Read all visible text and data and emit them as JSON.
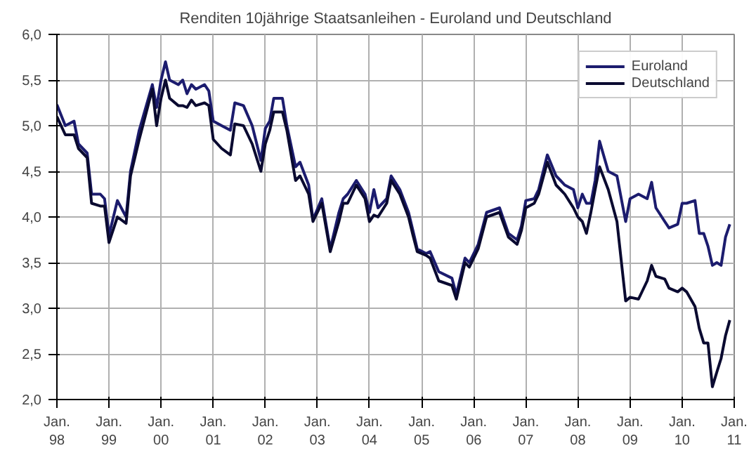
{
  "chart_data": {
    "type": "line",
    "title": "Renditen 10jährige Staatsanleihen - Euroland und Deutschland",
    "x": [
      "1998-01",
      "1998-03",
      "1998-05",
      "1998-06",
      "1998-08",
      "1998-09",
      "1998-11",
      "1998-12",
      "1999-01",
      "1999-03",
      "1999-05",
      "1999-06",
      "1999-08",
      "1999-11",
      "1999-12",
      "2000-01",
      "2000-02",
      "2000-03",
      "2000-05",
      "2000-06",
      "2000-07",
      "2000-08",
      "2000-09",
      "2000-11",
      "2000-12",
      "2001-01",
      "2001-03",
      "2001-05",
      "2001-06",
      "2001-08",
      "2001-10",
      "2001-12",
      "2002-01",
      "2002-02",
      "2002-03",
      "2002-05",
      "2002-06",
      "2002-08",
      "2002-09",
      "2002-11",
      "2002-12",
      "2003-02",
      "2003-04",
      "2003-06",
      "2003-07",
      "2003-08",
      "2003-10",
      "2003-12",
      "2004-01",
      "2004-02",
      "2004-03",
      "2004-05",
      "2004-06",
      "2004-08",
      "2004-10",
      "2004-11",
      "2004-12",
      "2005-02",
      "2005-03",
      "2005-05",
      "2005-08",
      "2005-09",
      "2005-11",
      "2005-12",
      "2006-02",
      "2006-04",
      "2006-07",
      "2006-09",
      "2006-11",
      "2006-12",
      "2007-01",
      "2007-03",
      "2007-04",
      "2007-06",
      "2007-08",
      "2007-09",
      "2007-10",
      "2007-12",
      "2008-01",
      "2008-02",
      "2008-03",
      "2008-04",
      "2008-05",
      "2008-06",
      "2008-08",
      "2008-10",
      "2008-12",
      "2009-01",
      "2009-03",
      "2009-05",
      "2009-06",
      "2009-07",
      "2009-09",
      "2009-10",
      "2009-12",
      "2010-01",
      "2010-02",
      "2010-04",
      "2010-05",
      "2010-06",
      "2010-07",
      "2010-08",
      "2010-09",
      "2010-10",
      "2010-11",
      "2010-12"
    ],
    "series": [
      {
        "name": "Euroland",
        "color": "#1c1c6e",
        "values": [
          5.23,
          5.0,
          5.05,
          4.8,
          4.7,
          4.25,
          4.25,
          4.2,
          3.8,
          4.18,
          4.0,
          4.5,
          4.95,
          5.45,
          5.2,
          5.5,
          5.7,
          5.5,
          5.45,
          5.5,
          5.35,
          5.45,
          5.4,
          5.45,
          5.38,
          5.05,
          5.0,
          4.95,
          5.25,
          5.22,
          5.0,
          4.62,
          4.97,
          5.05,
          5.3,
          5.3,
          5.0,
          4.55,
          4.6,
          4.35,
          3.97,
          4.2,
          3.65,
          4.05,
          4.2,
          4.25,
          4.4,
          4.25,
          4.05,
          4.3,
          4.1,
          4.2,
          4.45,
          4.3,
          4.05,
          3.85,
          3.65,
          3.6,
          3.62,
          3.4,
          3.33,
          3.15,
          3.55,
          3.5,
          3.7,
          4.05,
          4.1,
          3.82,
          3.75,
          3.9,
          4.18,
          4.2,
          4.3,
          4.68,
          4.45,
          4.4,
          4.35,
          4.3,
          4.1,
          4.25,
          4.15,
          4.15,
          4.4,
          4.83,
          4.5,
          4.45,
          3.95,
          4.2,
          4.25,
          4.2,
          4.38,
          4.1,
          3.95,
          3.88,
          3.92,
          4.15,
          4.15,
          4.18,
          3.82,
          3.82,
          3.68,
          3.47,
          3.5,
          3.47,
          3.78,
          3.92
        ]
      },
      {
        "name": "Deutschland",
        "color": "#0a0a30",
        "values": [
          5.1,
          4.9,
          4.9,
          4.75,
          4.65,
          4.15,
          4.12,
          4.12,
          3.72,
          4.0,
          3.93,
          4.45,
          4.85,
          5.4,
          5.0,
          5.3,
          5.5,
          5.3,
          5.22,
          5.22,
          5.2,
          5.28,
          5.22,
          5.25,
          5.22,
          4.85,
          4.75,
          4.68,
          5.02,
          5.0,
          4.8,
          4.5,
          4.8,
          4.95,
          5.15,
          5.15,
          4.95,
          4.4,
          4.45,
          4.25,
          3.95,
          4.15,
          3.62,
          3.95,
          4.15,
          4.15,
          4.35,
          4.2,
          3.95,
          4.02,
          4.0,
          4.15,
          4.4,
          4.25,
          4.0,
          3.8,
          3.62,
          3.58,
          3.55,
          3.3,
          3.25,
          3.1,
          3.5,
          3.45,
          3.65,
          4.0,
          4.05,
          3.78,
          3.7,
          3.85,
          4.1,
          4.15,
          4.25,
          4.6,
          4.35,
          4.3,
          4.25,
          4.1,
          4.0,
          3.95,
          3.82,
          4.05,
          4.3,
          4.55,
          4.3,
          3.95,
          3.08,
          3.12,
          3.1,
          3.3,
          3.47,
          3.35,
          3.32,
          3.22,
          3.18,
          3.22,
          3.18,
          3.02,
          2.78,
          2.62,
          2.62,
          2.14,
          2.3,
          2.45,
          2.7,
          2.87
        ]
      }
    ],
    "xlim": [
      "1998-01",
      "2011-01"
    ],
    "xticks": [
      {
        "value": "1998-01",
        "label": "Jan.\n98"
      },
      {
        "value": "1999-01",
        "label": "Jan.\n99"
      },
      {
        "value": "2000-01",
        "label": "Jan.\n00"
      },
      {
        "value": "2001-01",
        "label": "Jan.\n01"
      },
      {
        "value": "2002-01",
        "label": "Jan.\n02"
      },
      {
        "value": "2003-01",
        "label": "Jan.\n03"
      },
      {
        "value": "2004-01",
        "label": "Jan.\n04"
      },
      {
        "value": "2005-01",
        "label": "Jan.\n05"
      },
      {
        "value": "2006-01",
        "label": "Jan.\n06"
      },
      {
        "value": "2007-01",
        "label": "Jan.\n07"
      },
      {
        "value": "2008-01",
        "label": "Jan.\n08"
      },
      {
        "value": "2009-01",
        "label": "Jan.\n09"
      },
      {
        "value": "2010-01",
        "label": "Jan.\n10"
      },
      {
        "value": "2011-01",
        "label": "Jan.\n11"
      }
    ],
    "ylim": [
      2.0,
      6.0
    ],
    "yticks": [
      {
        "value": 2.0,
        "label": "2,0"
      },
      {
        "value": 2.5,
        "label": "2,5"
      },
      {
        "value": 3.0,
        "label": "3,0"
      },
      {
        "value": 3.5,
        "label": "3,5"
      },
      {
        "value": 4.0,
        "label": "4,0"
      },
      {
        "value": 4.5,
        "label": "4,5"
      },
      {
        "value": 5.0,
        "label": "5,0"
      },
      {
        "value": 5.5,
        "label": "5,5"
      },
      {
        "value": 6.0,
        "label": "6,0"
      }
    ],
    "grid": true,
    "legend": "top right",
    "line_style": "solid"
  }
}
